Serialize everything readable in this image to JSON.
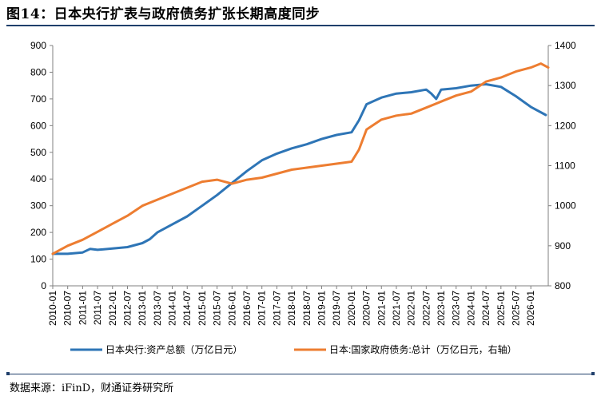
{
  "header": {
    "title": "图14：日本央行扩表与政府债务扩张长期高度同步"
  },
  "footer": {
    "source": "数据来源：iFinD，财通证券研究所"
  },
  "chart_data": {
    "type": "line",
    "title": "图14：日本央行扩表与政府债务扩张长期高度同步",
    "xlabel": "",
    "ylabel": "",
    "x_ticks": [
      "2010-01",
      "2010-07",
      "2011-01",
      "2011-07",
      "2012-01",
      "2012-07",
      "2013-01",
      "2013-07",
      "2014-01",
      "2014-07",
      "2015-01",
      "2015-07",
      "2016-01",
      "2016-07",
      "2017-01",
      "2017-07",
      "2018-01",
      "2018-07",
      "2019-01",
      "2019-07",
      "2020-01",
      "2020-07",
      "2021-01",
      "2021-07",
      "2022-01",
      "2022-07",
      "2023-01",
      "2023-07",
      "2024-01",
      "2024-07",
      "2025-01",
      "2025-07",
      "2026-01"
    ],
    "x_range": [
      "2010-01",
      "2026-08"
    ],
    "ylim_left": [
      0,
      900
    ],
    "yticks_left": [
      0,
      100,
      200,
      300,
      400,
      500,
      600,
      700,
      800,
      900
    ],
    "ylim_right": [
      800,
      1400
    ],
    "yticks_right": [
      800,
      900,
      1000,
      1100,
      1200,
      1300,
      1400
    ],
    "grid": false,
    "legend_position": "bottom",
    "series": [
      {
        "name": "日本央行:资产总额（万亿日元）",
        "axis": "left",
        "color": "#2e75b6",
        "points": [
          [
            "2010-01",
            120
          ],
          [
            "2010-07",
            120
          ],
          [
            "2011-01",
            125
          ],
          [
            "2011-04",
            138
          ],
          [
            "2011-07",
            135
          ],
          [
            "2012-01",
            140
          ],
          [
            "2012-07",
            145
          ],
          [
            "2013-01",
            160
          ],
          [
            "2013-04",
            175
          ],
          [
            "2013-07",
            200
          ],
          [
            "2014-01",
            230
          ],
          [
            "2014-07",
            260
          ],
          [
            "2015-01",
            300
          ],
          [
            "2015-07",
            340
          ],
          [
            "2016-01",
            385
          ],
          [
            "2016-07",
            430
          ],
          [
            "2017-01",
            470
          ],
          [
            "2017-07",
            495
          ],
          [
            "2018-01",
            515
          ],
          [
            "2018-07",
            530
          ],
          [
            "2019-01",
            550
          ],
          [
            "2019-07",
            565
          ],
          [
            "2020-01",
            575
          ],
          [
            "2020-04",
            620
          ],
          [
            "2020-07",
            680
          ],
          [
            "2021-01",
            705
          ],
          [
            "2021-07",
            720
          ],
          [
            "2022-01",
            725
          ],
          [
            "2022-07",
            735
          ],
          [
            "2022-09",
            720
          ],
          [
            "2022-11",
            700
          ],
          [
            "2023-01",
            735
          ],
          [
            "2023-07",
            740
          ],
          [
            "2024-01",
            750
          ],
          [
            "2024-07",
            755
          ],
          [
            "2025-01",
            745
          ],
          [
            "2025-07",
            710
          ],
          [
            "2026-01",
            670
          ],
          [
            "2026-07",
            640
          ]
        ]
      },
      {
        "name": "日本:国家政府债务:总计（万亿日元，右轴）",
        "axis": "right",
        "color": "#ed7d31",
        "points": [
          [
            "2010-01",
            880
          ],
          [
            "2010-07",
            900
          ],
          [
            "2011-01",
            915
          ],
          [
            "2011-07",
            935
          ],
          [
            "2012-01",
            955
          ],
          [
            "2012-07",
            975
          ],
          [
            "2013-01",
            1000
          ],
          [
            "2013-07",
            1015
          ],
          [
            "2014-01",
            1030
          ],
          [
            "2014-07",
            1045
          ],
          [
            "2015-01",
            1060
          ],
          [
            "2015-07",
            1065
          ],
          [
            "2016-01",
            1055
          ],
          [
            "2016-07",
            1065
          ],
          [
            "2017-01",
            1070
          ],
          [
            "2017-07",
            1080
          ],
          [
            "2018-01",
            1090
          ],
          [
            "2018-07",
            1095
          ],
          [
            "2019-01",
            1100
          ],
          [
            "2019-07",
            1105
          ],
          [
            "2020-01",
            1110
          ],
          [
            "2020-04",
            1140
          ],
          [
            "2020-07",
            1190
          ],
          [
            "2021-01",
            1215
          ],
          [
            "2021-07",
            1225
          ],
          [
            "2022-01",
            1230
          ],
          [
            "2022-07",
            1245
          ],
          [
            "2023-01",
            1260
          ],
          [
            "2023-07",
            1275
          ],
          [
            "2024-01",
            1285
          ],
          [
            "2024-07",
            1310
          ],
          [
            "2025-01",
            1320
          ],
          [
            "2025-07",
            1335
          ],
          [
            "2026-01",
            1345
          ],
          [
            "2026-05",
            1355
          ],
          [
            "2026-08",
            1345
          ]
        ]
      }
    ]
  }
}
